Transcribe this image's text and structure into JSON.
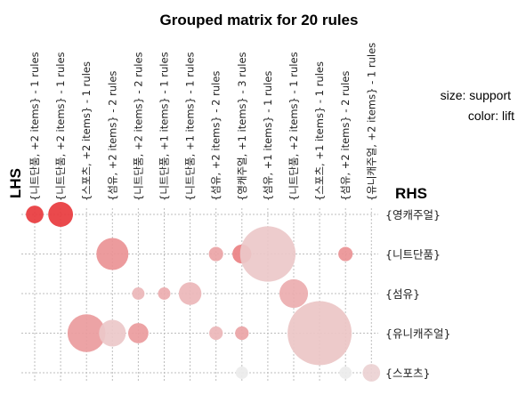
{
  "chart_data": {
    "type": "scatter",
    "title": "Grouped matrix for 20 rules",
    "xlabel": "LHS",
    "ylabel": "RHS",
    "legend": {
      "size": "size: support",
      "color": "color: lift",
      "placement": "top-right"
    },
    "lhs_groups": [
      "{니트단품, +2 items} - 1 rules",
      "{니트단품, +2 items} - 1 rules",
      "{스포츠, +2 items} - 1 rules",
      "{섬유, +2 items} - 2 rules",
      "{니트단품, +2 items} - 2 rules",
      "{니트단품, +1 items} - 1 rules",
      "{니트단품, +1 items} - 1 rules",
      "{섬유, +2 items} - 2 rules",
      "{영캐주얼, +1 items} - 3 rules",
      "{섬유, +1 items} - 1 rules",
      "{니트단품, +2 items} - 1 rules",
      "{스포츠, +1 items} - 1 rules",
      "{섬유, +2 items} - 2 rules",
      "{유니캐주얼, +2 items} - 1 rules"
    ],
    "rhs_items": [
      "{영캐주얼}",
      "{니트단품}",
      "{섬유}",
      "{유니캐주얼}",
      "{스포츠}"
    ],
    "points": [
      {
        "x": 1,
        "y": 1,
        "support": 0.3,
        "lift": 1.0
      },
      {
        "x": 2,
        "y": 1,
        "support": 0.6,
        "lift": 1.0
      },
      {
        "x": 4,
        "y": 2,
        "support": 1.0,
        "lift": 0.5
      },
      {
        "x": 8,
        "y": 2,
        "support": 0.2,
        "lift": 0.4
      },
      {
        "x": 9,
        "y": 2,
        "support": 0.35,
        "lift": 0.6
      },
      {
        "x": 10,
        "y": 2,
        "support": 3.0,
        "lift": 0.2
      },
      {
        "x": 13,
        "y": 2,
        "support": 0.2,
        "lift": 0.5
      },
      {
        "x": 5,
        "y": 3,
        "support": 0.15,
        "lift": 0.3
      },
      {
        "x": 6,
        "y": 3,
        "support": 0.15,
        "lift": 0.35
      },
      {
        "x": 7,
        "y": 3,
        "support": 0.5,
        "lift": 0.3
      },
      {
        "x": 11,
        "y": 3,
        "support": 0.8,
        "lift": 0.35
      },
      {
        "x": 3,
        "y": 4,
        "support": 1.4,
        "lift": 0.45
      },
      {
        "x": 4,
        "y": 4,
        "support": 0.7,
        "lift": 0.2
      },
      {
        "x": 5,
        "y": 4,
        "support": 0.4,
        "lift": 0.45
      },
      {
        "x": 8,
        "y": 4,
        "support": 0.18,
        "lift": 0.3
      },
      {
        "x": 9,
        "y": 4,
        "support": 0.18,
        "lift": 0.4
      },
      {
        "x": 12,
        "y": 4,
        "support": 4.0,
        "lift": 0.22
      },
      {
        "x": 9,
        "y": 5,
        "support": 0.15,
        "lift": 0.0
      },
      {
        "x": 13,
        "y": 5,
        "support": 0.15,
        "lift": 0.0
      },
      {
        "x": 14,
        "y": 5,
        "support": 0.3,
        "lift": 0.15
      }
    ]
  },
  "colors": {
    "high": "#e8393d",
    "low": "#ececec",
    "grid": "#bdbdbd"
  }
}
